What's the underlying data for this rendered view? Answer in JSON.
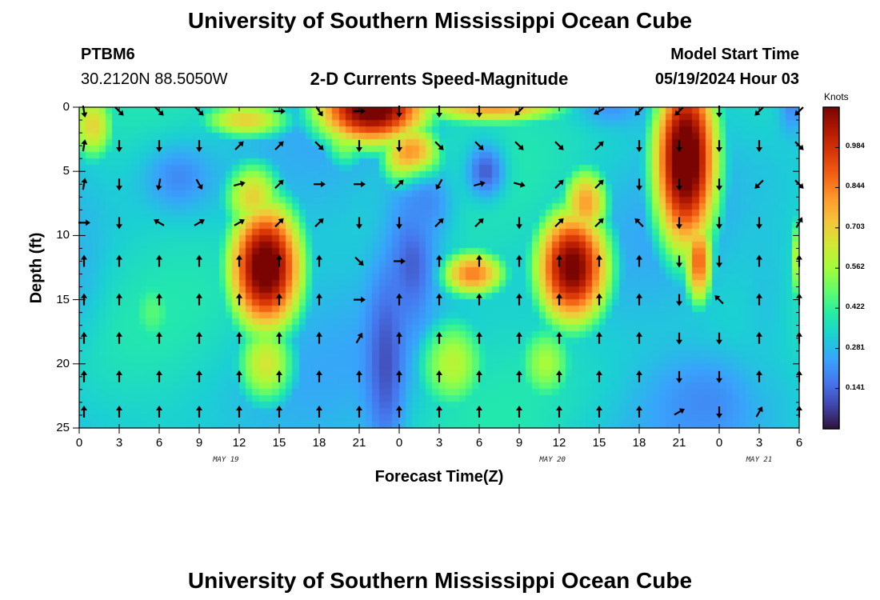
{
  "page": {
    "title_top": "University of Southern Mississippi Ocean Cube",
    "title_bottom": "University of Southern Mississippi Ocean Cube"
  },
  "station": {
    "id": "PTBM6",
    "location": "30.2120N  88.5050W"
  },
  "model": {
    "label": "Model Start Time",
    "start": "05/19/2024 Hour 03"
  },
  "colors": {
    "palette": [
      "#30123b",
      "#4145ab",
      "#4675ed",
      "#39a2fc",
      "#1bcfd4",
      "#24eca6",
      "#61fc6c",
      "#a4fc3b",
      "#d1e834",
      "#f3c63a",
      "#fe9b2d",
      "#f36315",
      "#d93806",
      "#b11901",
      "#7a0402"
    ]
  },
  "chart_data": {
    "type": "heatmap",
    "title": "2-D Currents Speed-Magnitude",
    "xlabel": "Forecast Time(Z)",
    "ylabel": "Depth (ft)",
    "x_ticks": [
      "0",
      "3",
      "6",
      "9",
      "12",
      "15",
      "18",
      "21",
      "0",
      "3",
      "6",
      "9",
      "12",
      "15",
      "18",
      "21",
      "0",
      "3",
      "6"
    ],
    "x_range_hours": [
      0,
      54
    ],
    "date_labels": [
      {
        "text": "MAY 19",
        "hour": 11
      },
      {
        "text": "MAY 20",
        "hour": 35.5
      },
      {
        "text": "MAY 21",
        "hour": 51
      }
    ],
    "y_ticks": [
      0,
      5,
      10,
      15,
      20,
      25
    ],
    "ylim": [
      0,
      25
    ],
    "colorbar": {
      "unit": "Knots",
      "min": 0.0,
      "max": 1.125,
      "tick_values": [
        0.141,
        0.281,
        0.422,
        0.562,
        0.703,
        0.844,
        0.984
      ],
      "tick_labels": [
        "0.141",
        "0.281",
        "0.422",
        "0.562",
        "0.703",
        "0.844",
        "0.984"
      ]
    },
    "speed_blobs": [
      {
        "h": 22,
        "d": 0,
        "sx": 3.5,
        "sy": 2.5,
        "v": 0.95
      },
      {
        "h": 25,
        "d": 4,
        "sx": 1.8,
        "sy": 2.2,
        "v": 0.7
      },
      {
        "h": 31,
        "d": 0,
        "sx": 5,
        "sy": 1.2,
        "v": 0.55
      },
      {
        "h": 12.5,
        "d": 1,
        "sx": 3,
        "sy": 1.3,
        "v": 0.45
      },
      {
        "h": 1,
        "d": 1.5,
        "sx": 1.5,
        "sy": 2.5,
        "v": 0.45
      },
      {
        "h": 14,
        "d": 12.5,
        "sx": 2.3,
        "sy": 4.2,
        "v": 0.95
      },
      {
        "h": 13,
        "d": 7,
        "sx": 2,
        "sy": 2.5,
        "v": 0.45
      },
      {
        "h": 14,
        "d": 20,
        "sx": 2,
        "sy": 3,
        "v": 0.4
      },
      {
        "h": 37,
        "d": 12.5,
        "sx": 2.3,
        "sy": 3.8,
        "v": 0.9
      },
      {
        "h": 38,
        "d": 7.5,
        "sx": 1.5,
        "sy": 2.5,
        "v": 0.55
      },
      {
        "h": 29.5,
        "d": 13,
        "sx": 2.2,
        "sy": 1.6,
        "v": 0.6
      },
      {
        "h": 28,
        "d": 20,
        "sx": 2.5,
        "sy": 3.5,
        "v": 0.35
      },
      {
        "h": 35,
        "d": 20,
        "sx": 2,
        "sy": 3,
        "v": 0.32
      },
      {
        "h": 45.5,
        "d": 4,
        "sx": 2,
        "sy": 6,
        "v": 0.98
      },
      {
        "h": 46.5,
        "d": 12,
        "sx": 0.9,
        "sy": 3,
        "v": 0.65
      },
      {
        "h": 54,
        "d": 12,
        "sx": 0.6,
        "sy": 3,
        "v": 0.5
      },
      {
        "h": 5.5,
        "d": 16,
        "sx": 1.8,
        "sy": 3,
        "v": 0.22
      },
      {
        "h": 20,
        "d": 1,
        "sx": 1.5,
        "sy": 3,
        "v": 0.45
      }
    ],
    "slow_pockets": [
      {
        "h": 7.5,
        "d": 5.5,
        "sx": 1.8,
        "sy": 1.8,
        "v": 0.2
      },
      {
        "h": 25,
        "d": 12,
        "sx": 1.2,
        "sy": 3.5,
        "v": 0.12
      },
      {
        "h": 23,
        "d": 20,
        "sx": 1,
        "sy": 5,
        "v": 0.1
      },
      {
        "h": 26,
        "d": 7.5,
        "sx": 1.5,
        "sy": 2,
        "v": 0.2
      },
      {
        "h": 47,
        "d": 23,
        "sx": 3,
        "sy": 2.5,
        "v": 0.2
      },
      {
        "h": 51.5,
        "d": 14,
        "sx": 1.5,
        "sy": 6,
        "v": 0.3
      },
      {
        "h": 40,
        "d": 0,
        "sx": 1.6,
        "sy": 1,
        "v": 0.22
      },
      {
        "h": 53.5,
        "d": 0,
        "sx": 0.7,
        "sy": 1.5,
        "v": 0.2
      },
      {
        "h": 0,
        "d": 12,
        "sx": 1.2,
        "sy": 4,
        "v": 0.28
      },
      {
        "h": 30.5,
        "d": 5,
        "sx": 1,
        "sy": 1.5,
        "v": 0.12
      }
    ],
    "vectors": {
      "hours": [
        0,
        3,
        6,
        9,
        12,
        15,
        18,
        21,
        24,
        27,
        30,
        33,
        36,
        39,
        42,
        45,
        48,
        51,
        54
      ],
      "depths": [
        0,
        3,
        6,
        9,
        12,
        15,
        18,
        21,
        24
      ],
      "angles_deg": [
        [
          80,
          45,
          45,
          45,
          null,
          0,
          55,
          0,
          90,
          90,
          90,
          135,
          null,
          150,
          135,
          135,
          90,
          135,
          135
        ],
        [
          -80,
          90,
          90,
          90,
          -45,
          -45,
          45,
          90,
          90,
          45,
          45,
          45,
          45,
          -45,
          90,
          90,
          90,
          90,
          45
        ],
        [
          -80,
          90,
          100,
          60,
          -15,
          -45,
          0,
          0,
          -45,
          120,
          -15,
          15,
          -45,
          -45,
          90,
          90,
          90,
          135,
          45
        ],
        [
          0,
          90,
          -150,
          -30,
          -30,
          -45,
          -45,
          90,
          90,
          -45,
          -45,
          90,
          -45,
          -45,
          -135,
          90,
          90,
          90,
          -60
        ],
        [
          -90,
          -90,
          -90,
          -90,
          -90,
          -90,
          -90,
          45,
          0,
          -90,
          -90,
          -90,
          -90,
          -90,
          -90,
          90,
          90,
          -90,
          -90
        ],
        [
          -90,
          -90,
          -90,
          -90,
          -90,
          -90,
          -90,
          0,
          -90,
          -90,
          -90,
          -90,
          -90,
          -90,
          -90,
          90,
          -135,
          -90,
          -90
        ],
        [
          -90,
          -90,
          -90,
          -90,
          -90,
          -90,
          -90,
          -60,
          -90,
          -90,
          -90,
          -90,
          -90,
          -90,
          -90,
          90,
          90,
          -90,
          -90
        ],
        [
          -90,
          -90,
          -90,
          -90,
          -90,
          -90,
          -90,
          -90,
          -90,
          -90,
          -90,
          -90,
          -90,
          -90,
          -90,
          90,
          90,
          -90,
          -90
        ],
        [
          -90,
          -90,
          -90,
          -90,
          -90,
          -90,
          -90,
          -90,
          -90,
          -90,
          -90,
          -90,
          -90,
          -90,
          -90,
          -30,
          90,
          -60,
          -90
        ]
      ]
    }
  }
}
